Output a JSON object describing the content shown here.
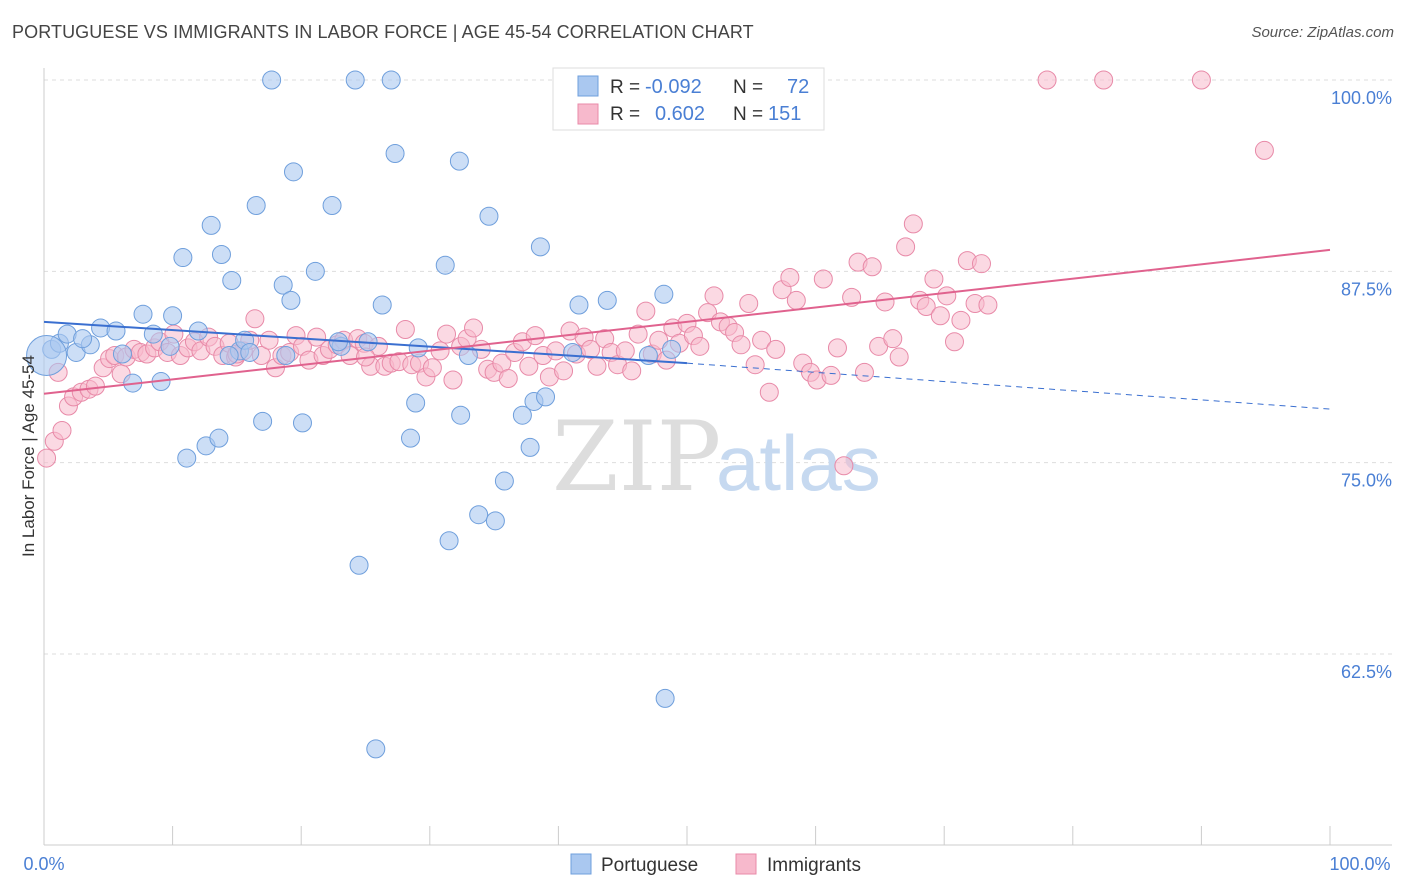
{
  "title": "PORTUGUESE VS IMMIGRANTS IN LABOR FORCE | AGE 45-54 CORRELATION CHART",
  "source": "Source: ZipAtlas.com",
  "watermark": {
    "zip": "ZIP",
    "atlas": "atlas"
  },
  "colors": {
    "portuguese_fill": "#aac8f0",
    "portuguese_stroke": "#6f9fdc",
    "portuguese_line": "#3a6fd0",
    "immigrants_fill": "#f7b9cc",
    "immigrants_stroke": "#e88aa8",
    "immigrants_line": "#e0628e",
    "tick_text": "#4a7fd4"
  },
  "legend": {
    "r_label": "R =",
    "n_label": "N =",
    "rows": [
      {
        "r": "-0.092",
        "n": "72"
      },
      {
        "r": "0.602",
        "n": "151"
      }
    ]
  },
  "chart_data": {
    "type": "scatter",
    "title": "PORTUGUESE VS IMMIGRANTS IN LABOR FORCE | AGE 45-54 CORRELATION CHART",
    "xlabel": "",
    "ylabel": "In Labor Force | Age 45-54",
    "xlim": [
      0,
      100
    ],
    "ylim": [
      50.5,
      102.5
    ],
    "x_tick_labels": [
      "0.0%",
      "100.0%"
    ],
    "y_ticks": [
      62.5,
      75.0,
      87.5,
      100.0
    ],
    "y_tick_labels": [
      "62.5%",
      "75.0%",
      "87.5%",
      "100.0%"
    ],
    "grid": "horizontal dashed",
    "legend_position": "top-center",
    "series": [
      {
        "name": "Portuguese",
        "r": -0.092,
        "n": 72,
        "trend": {
          "x0": 0,
          "y0": 84.2,
          "x1": 50,
          "y1": 81.5,
          "x_end": 100,
          "y_end": 78.5
        },
        "points": [
          [
            0.6,
            82.4
          ],
          [
            1.2,
            82.8
          ],
          [
            1.8,
            83.4
          ],
          [
            2.5,
            82.2
          ],
          [
            3.6,
            82.7
          ],
          [
            4.4,
            83.8
          ],
          [
            5.6,
            83.6
          ],
          [
            6.9,
            80.2
          ],
          [
            7.7,
            84.7
          ],
          [
            8.5,
            83.4
          ],
          [
            9.1,
            80.3
          ],
          [
            10.0,
            84.6
          ],
          [
            10.8,
            88.4
          ],
          [
            11.1,
            75.3
          ],
          [
            12.0,
            83.6
          ],
          [
            12.6,
            76.1
          ],
          [
            13.0,
            90.5
          ],
          [
            13.6,
            76.6
          ],
          [
            13.8,
            88.6
          ],
          [
            14.6,
            86.9
          ],
          [
            15.2,
            82.3
          ],
          [
            15.6,
            83.0
          ],
          [
            16.0,
            82.2
          ],
          [
            16.5,
            91.8
          ],
          [
            17.0,
            77.7
          ],
          [
            17.7,
            100.0
          ],
          [
            18.6,
            86.6
          ],
          [
            19.2,
            85.6
          ],
          [
            19.4,
            94.0
          ],
          [
            20.1,
            77.6
          ],
          [
            21.1,
            87.5
          ],
          [
            22.4,
            91.8
          ],
          [
            23.1,
            82.6
          ],
          [
            24.2,
            100.0
          ],
          [
            24.5,
            68.3
          ],
          [
            25.2,
            82.9
          ],
          [
            25.8,
            56.3
          ],
          [
            26.3,
            85.3
          ],
          [
            27.0,
            100.0
          ],
          [
            27.3,
            95.2
          ],
          [
            28.5,
            76.6
          ],
          [
            28.9,
            78.9
          ],
          [
            29.1,
            82.5
          ],
          [
            31.2,
            87.9
          ],
          [
            31.5,
            69.9
          ],
          [
            32.3,
            94.7
          ],
          [
            32.4,
            78.1
          ],
          [
            33.0,
            82.0
          ],
          [
            33.8,
            71.6
          ],
          [
            34.6,
            91.1
          ],
          [
            35.1,
            71.2
          ],
          [
            35.8,
            73.8
          ],
          [
            37.2,
            78.1
          ],
          [
            37.8,
            76.0
          ],
          [
            38.1,
            79.0
          ],
          [
            38.6,
            89.1
          ],
          [
            39.0,
            79.3
          ],
          [
            41.1,
            82.2
          ],
          [
            41.6,
            85.3
          ],
          [
            43.8,
            85.6
          ],
          [
            45.6,
            100.0
          ],
          [
            47.0,
            82.0
          ],
          [
            48.2,
            86.0
          ],
          [
            48.3,
            59.6
          ],
          [
            48.8,
            82.4
          ],
          [
            9.8,
            82.6
          ],
          [
            3.0,
            83.1
          ],
          [
            6.1,
            82.1
          ],
          [
            18.8,
            82.0
          ],
          [
            22.9,
            82.9
          ],
          [
            14.4,
            82.0
          ],
          [
            0.2,
            82.0
          ]
        ]
      },
      {
        "name": "Immigrants",
        "r": 0.602,
        "n": 151,
        "trend": {
          "x0": 0,
          "y0": 79.5,
          "x1": 100,
          "y1": 88.9
        },
        "points": [
          [
            0.2,
            75.3
          ],
          [
            0.8,
            76.4
          ],
          [
            1.4,
            77.1
          ],
          [
            1.9,
            78.7
          ],
          [
            2.3,
            79.3
          ],
          [
            2.9,
            79.6
          ],
          [
            3.5,
            79.8
          ],
          [
            4.0,
            80.0
          ],
          [
            4.6,
            81.2
          ],
          [
            5.1,
            81.8
          ],
          [
            5.5,
            82.0
          ],
          [
            6.0,
            80.8
          ],
          [
            6.4,
            81.9
          ],
          [
            7.0,
            82.4
          ],
          [
            7.5,
            82.2
          ],
          [
            8.0,
            82.1
          ],
          [
            8.6,
            82.5
          ],
          [
            9.0,
            82.9
          ],
          [
            9.6,
            82.2
          ],
          [
            10.1,
            83.4
          ],
          [
            10.6,
            82.0
          ],
          [
            11.2,
            82.5
          ],
          [
            11.7,
            82.9
          ],
          [
            12.2,
            82.3
          ],
          [
            12.8,
            83.2
          ],
          [
            13.3,
            82.6
          ],
          [
            13.9,
            82.0
          ],
          [
            14.4,
            82.8
          ],
          [
            14.9,
            81.9
          ],
          [
            15.5,
            82.3
          ],
          [
            16.0,
            83.0
          ],
          [
            16.4,
            84.4
          ],
          [
            16.9,
            82.0
          ],
          [
            17.5,
            83.0
          ],
          [
            18.0,
            81.2
          ],
          [
            18.5,
            82.0
          ],
          [
            19.1,
            82.2
          ],
          [
            19.6,
            83.3
          ],
          [
            20.1,
            82.6
          ],
          [
            20.6,
            81.7
          ],
          [
            21.2,
            83.2
          ],
          [
            21.7,
            82.0
          ],
          [
            22.2,
            82.4
          ],
          [
            22.8,
            82.7
          ],
          [
            23.3,
            83.0
          ],
          [
            23.8,
            82.0
          ],
          [
            24.4,
            83.1
          ],
          [
            24.9,
            82.8
          ],
          [
            25.4,
            81.3
          ],
          [
            26.0,
            82.6
          ],
          [
            26.5,
            81.3
          ],
          [
            27.0,
            81.5
          ],
          [
            27.6,
            81.6
          ],
          [
            28.1,
            83.7
          ],
          [
            28.6,
            81.4
          ],
          [
            29.2,
            81.5
          ],
          [
            29.7,
            80.6
          ],
          [
            30.2,
            81.2
          ],
          [
            30.8,
            82.3
          ],
          [
            31.3,
            83.4
          ],
          [
            31.8,
            80.4
          ],
          [
            32.4,
            82.6
          ],
          [
            32.9,
            83.1
          ],
          [
            33.4,
            83.8
          ],
          [
            34.0,
            82.4
          ],
          [
            34.5,
            81.1
          ],
          [
            35.0,
            80.9
          ],
          [
            35.6,
            81.5
          ],
          [
            36.1,
            80.5
          ],
          [
            36.6,
            82.2
          ],
          [
            37.2,
            82.9
          ],
          [
            37.7,
            81.3
          ],
          [
            38.2,
            83.3
          ],
          [
            38.8,
            82.0
          ],
          [
            39.3,
            80.6
          ],
          [
            39.8,
            82.3
          ],
          [
            40.4,
            81.0
          ],
          [
            40.9,
            83.6
          ],
          [
            41.4,
            82.1
          ],
          [
            42.0,
            83.2
          ],
          [
            42.5,
            82.4
          ],
          [
            43.0,
            81.3
          ],
          [
            43.6,
            83.1
          ],
          [
            44.1,
            82.2
          ],
          [
            44.6,
            81.4
          ],
          [
            45.2,
            82.3
          ],
          [
            45.7,
            81.0
          ],
          [
            46.2,
            83.4
          ],
          [
            46.8,
            84.9
          ],
          [
            47.3,
            82.1
          ],
          [
            47.8,
            83.0
          ],
          [
            48.4,
            81.7
          ],
          [
            48.9,
            83.8
          ],
          [
            49.4,
            82.8
          ],
          [
            50.0,
            84.1
          ],
          [
            50.5,
            83.3
          ],
          [
            51.0,
            82.6
          ],
          [
            51.6,
            84.8
          ],
          [
            52.1,
            85.9
          ],
          [
            52.6,
            84.2
          ],
          [
            53.2,
            83.9
          ],
          [
            53.7,
            83.5
          ],
          [
            54.2,
            82.7
          ],
          [
            54.8,
            85.4
          ],
          [
            55.3,
            81.4
          ],
          [
            55.8,
            83.0
          ],
          [
            56.4,
            79.6
          ],
          [
            56.9,
            82.4
          ],
          [
            57.4,
            86.3
          ],
          [
            58.0,
            87.1
          ],
          [
            58.5,
            85.6
          ],
          [
            59.0,
            81.5
          ],
          [
            59.6,
            80.9
          ],
          [
            60.1,
            80.4
          ],
          [
            60.6,
            87.0
          ],
          [
            61.2,
            80.7
          ],
          [
            61.7,
            82.5
          ],
          [
            62.2,
            74.8
          ],
          [
            62.8,
            85.8
          ],
          [
            63.3,
            88.1
          ],
          [
            63.8,
            80.9
          ],
          [
            64.4,
            87.8
          ],
          [
            64.9,
            82.6
          ],
          [
            65.4,
            85.5
          ],
          [
            66.0,
            83.1
          ],
          [
            66.5,
            81.9
          ],
          [
            67.0,
            89.1
          ],
          [
            67.6,
            90.6
          ],
          [
            68.1,
            85.6
          ],
          [
            68.6,
            85.2
          ],
          [
            69.2,
            87.0
          ],
          [
            69.7,
            84.6
          ],
          [
            70.2,
            85.9
          ],
          [
            70.8,
            82.9
          ],
          [
            71.3,
            84.3
          ],
          [
            71.8,
            88.2
          ],
          [
            72.4,
            85.4
          ],
          [
            72.9,
            88.0
          ],
          [
            73.4,
            85.3
          ],
          [
            78.0,
            100.0
          ],
          [
            82.4,
            100.0
          ],
          [
            90.0,
            100.0
          ],
          [
            94.9,
            95.4
          ],
          [
            1.1,
            80.9
          ],
          [
            15.0,
            82.1
          ],
          [
            25.0,
            81.9
          ]
        ]
      }
    ]
  },
  "bottom_legend": [
    "Portuguese",
    "Immigrants"
  ]
}
